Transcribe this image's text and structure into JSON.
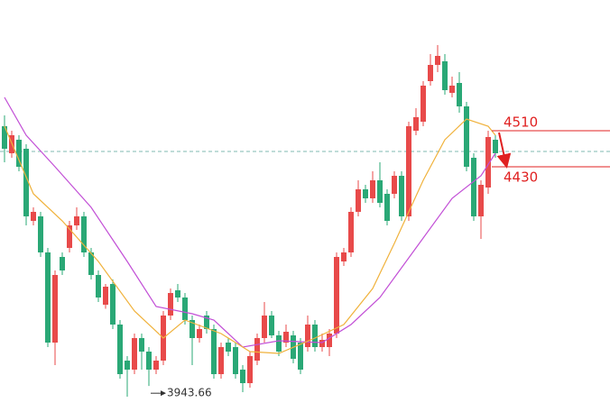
{
  "chart_data": {
    "type": "candlestick",
    "open": [
      4520,
      4460,
      4490,
      4470,
      4310,
      4320,
      4240,
      4040,
      4230,
      4250,
      4300,
      4320,
      4240,
      4190,
      4124,
      4170,
      4080,
      4000,
      3980,
      4050,
      4020,
      3980,
      4000,
      4100,
      4156,
      4140,
      4090,
      4050,
      4100,
      4070,
      3970,
      4040,
      4030,
      3980,
      3950,
      4000,
      4050,
      4100,
      4056,
      4040,
      4056,
      4040,
      4030,
      4080,
      4030,
      4030,
      4060,
      4220,
      4240,
      4330,
      4380,
      4360,
      4400,
      4370,
      4370,
      4410,
      4320,
      4510,
      4530,
      4620,
      4656,
      4664,
      4594,
      4616,
      4564,
      4450,
      4320,
      4384,
      4490
    ],
    "high": [
      4544,
      4510,
      4500,
      4480,
      4340,
      4330,
      4250,
      4200,
      4240,
      4310,
      4340,
      4330,
      4250,
      4200,
      4170,
      4180,
      4090,
      4010,
      4060,
      4060,
      4030,
      4010,
      4110,
      4160,
      4170,
      4150,
      4100,
      4080,
      4110,
      4080,
      4040,
      4050,
      4040,
      3990,
      4020,
      4060,
      4130,
      4110,
      4066,
      4080,
      4066,
      4050,
      4100,
      4090,
      4060,
      4070,
      4240,
      4250,
      4340,
      4400,
      4390,
      4420,
      4440,
      4380,
      4420,
      4420,
      4530,
      4560,
      4620,
      4680,
      4700,
      4680,
      4630,
      4640,
      4574,
      4460,
      4400,
      4510,
      4500
    ],
    "low": [
      4440,
      4450,
      4420,
      4300,
      4300,
      4230,
      4030,
      3990,
      4190,
      4240,
      4290,
      4230,
      4180,
      4130,
      4115,
      4070,
      3960,
      3920,
      3970,
      3980,
      3943.66,
      3970,
      3990,
      4090,
      4130,
      4080,
      3990,
      4040,
      4060,
      3960,
      3960,
      4010,
      3960,
      3930,
      3940,
      3990,
      4040,
      4050,
      4010,
      4030,
      3994,
      3970,
      4020,
      4020,
      4020,
      4010,
      4050,
      4210,
      4230,
      4320,
      4350,
      4350,
      4340,
      4300,
      4360,
      4310,
      4310,
      4500,
      4520,
      4610,
      4640,
      4590,
      4584,
      4550,
      4420,
      4310,
      4270,
      4370,
      4450
    ],
    "close": [
      4470,
      4500,
      4430,
      4320,
      4330,
      4240,
      4040,
      4190,
      4200,
      4300,
      4320,
      4240,
      4190,
      4140,
      4164,
      4080,
      3970,
      3980,
      4050,
      4020,
      3980,
      4000,
      4100,
      4150,
      4140,
      4090,
      4050,
      4070,
      4070,
      3970,
      4030,
      4020,
      3970,
      3950,
      4010,
      4050,
      4100,
      4056,
      4020,
      4064,
      4004,
      3980,
      4080,
      4030,
      4046,
      4060,
      4230,
      4240,
      4330,
      4380,
      4360,
      4400,
      4350,
      4310,
      4410,
      4320,
      4520,
      4540,
      4610,
      4656,
      4676,
      4600,
      4610,
      4564,
      4430,
      4320,
      4390,
      4496,
      4460
    ],
    "up_color": "#e84a4a",
    "down_color": "#2aa876",
    "lines": [
      {
        "color": "#c24fd6",
        "x": [
          0,
          3,
          7,
          12,
          17,
          21,
          26,
          29,
          33,
          38,
          44,
          48,
          52,
          57,
          62,
          66,
          68
        ],
        "values": [
          4584,
          4500,
          4430,
          4340,
          4220,
          4120,
          4104,
          4090,
          4030,
          4044,
          4040,
          4080,
          4140,
          4250,
          4360,
          4410,
          4460
        ]
      },
      {
        "color": "#f0b23c",
        "x": [
          0,
          4,
          8,
          13,
          18,
          22,
          25,
          30,
          34,
          38,
          43,
          47,
          51,
          54,
          58,
          61,
          64,
          67,
          68
        ],
        "values": [
          4520,
          4370,
          4310,
          4220,
          4110,
          4050,
          4090,
          4060,
          4020,
          4016,
          4050,
          4080,
          4160,
          4260,
          4400,
          4490,
          4536,
          4520,
          4500
        ]
      }
    ],
    "price_line": 4464,
    "annotations": [
      4510,
      4430
    ],
    "low_annotation": 3943.66,
    "annotation_color": "#e02020",
    "ylim": [
      3886,
      4800
    ]
  }
}
